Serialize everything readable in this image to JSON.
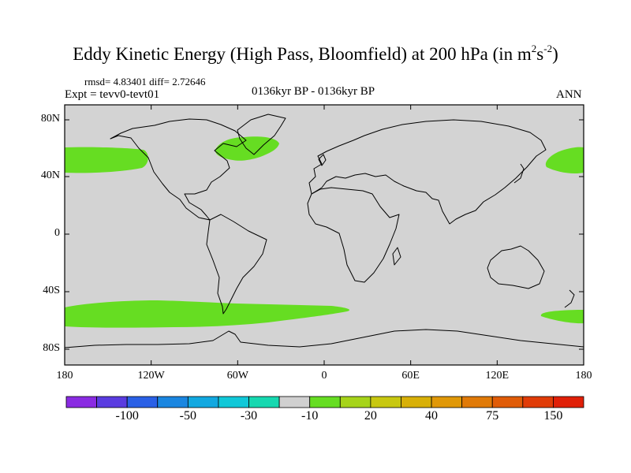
{
  "title": {
    "main": "Eddy Kinetic Energy (High Pass, Bloomfield) at 200 hPa (in m",
    "sup1": "2",
    "mid": "s",
    "sup2": "-2",
    "end": ")"
  },
  "stats": "rmsd= 4.83401 diff= 2.72646",
  "expt": "Expt = tevv0-tevt01",
  "period": "0136kyr BP - 0136kyr BP",
  "season": "ANN",
  "lat_labels": [
    "80N",
    "40N",
    "0",
    "40S",
    "80S"
  ],
  "lon_labels": [
    "180",
    "120W",
    "60W",
    "0",
    "60E",
    "120E",
    "180"
  ],
  "colorbar": {
    "labels": [
      "-100",
      "-50",
      "-30",
      "-10",
      "20",
      "40",
      "75",
      "150"
    ],
    "colors": [
      "#8a2be2",
      "#5a3ce0",
      "#2a60e6",
      "#1a86e0",
      "#12a8e0",
      "#10c8d8",
      "#16d8b0",
      "#d0d0d0",
      "#66dd22",
      "#a6d41a",
      "#c8c810",
      "#d8b008",
      "#e09808",
      "#e07a08",
      "#e05c08",
      "#e03c08",
      "#e02008"
    ]
  },
  "map_colors": {
    "background": "#d3d3d3",
    "positive_anomaly": "#66dd22",
    "coastline": "#000000"
  }
}
